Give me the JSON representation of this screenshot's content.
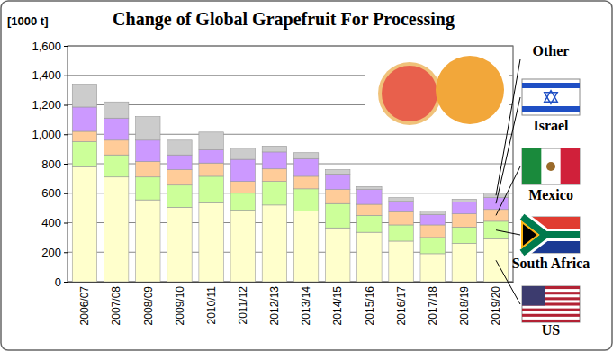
{
  "chart_data": {
    "type": "bar",
    "title": "Change of Global Grapefruit For Processing",
    "y_label": "[1000 t]",
    "categories": [
      "2006/07",
      "2007/08",
      "2008/09",
      "2009/10",
      "2010/11",
      "2011/12",
      "2012/13",
      "2013/14",
      "2014/15",
      "2015/16",
      "2016/17",
      "2017/18",
      "2018/19",
      "2019/20"
    ],
    "series": [
      {
        "name": "US",
        "color": "#ffffcc",
        "values": [
          780,
          710,
          555,
          505,
          535,
          485,
          520,
          480,
          365,
          335,
          275,
          190,
          260,
          290
        ]
      },
      {
        "name": "South Africa",
        "color": "#ccff99",
        "values": [
          170,
          150,
          155,
          150,
          180,
          115,
          160,
          150,
          165,
          115,
          110,
          110,
          110,
          120
        ]
      },
      {
        "name": "Mexico",
        "color": "#ffcc99",
        "values": [
          70,
          100,
          105,
          105,
          90,
          80,
          85,
          85,
          95,
          75,
          90,
          85,
          90,
          80
        ]
      },
      {
        "name": "Israel",
        "color": "#cc99ff",
        "values": [
          165,
          150,
          145,
          100,
          90,
          150,
          115,
          120,
          105,
          100,
          70,
          70,
          80,
          80
        ]
      },
      {
        "name": "Other",
        "color": "#cccccc",
        "values": [
          155,
          110,
          160,
          100,
          120,
          75,
          40,
          40,
          30,
          20,
          25,
          25,
          20,
          30
        ]
      }
    ],
    "ylim": [
      0,
      1600
    ],
    "yticks": [
      0,
      200,
      400,
      600,
      800,
      {
        "value": 1000,
        "label": "1,000"
      },
      {
        "value": 1200,
        "label": "1,200"
      },
      {
        "value": 1400,
        "label": "1,400"
      },
      {
        "value": 1600,
        "label": "1,600"
      }
    ],
    "stacked": true,
    "grid": true,
    "legend": "right"
  }
}
